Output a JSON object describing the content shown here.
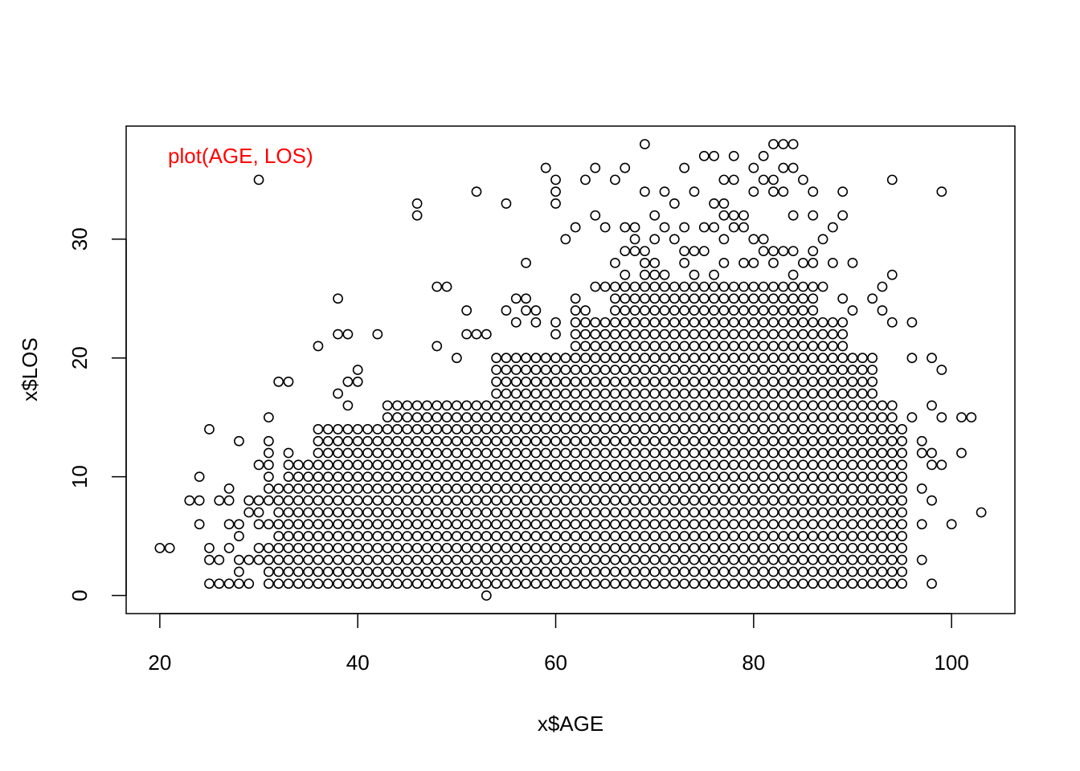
{
  "chart_data": {
    "type": "scatter",
    "title": "",
    "annotation": "plot(AGE, LOS)",
    "annotation_color": "#ff0000",
    "xlabel": "x$AGE",
    "ylabel": "x$LOS",
    "xlim": [
      16.6,
      106.4
    ],
    "ylim": [
      -1.52,
      39.52
    ],
    "x_ticks": [
      20,
      40,
      60,
      80,
      100
    ],
    "y_ticks": [
      0,
      10,
      20,
      30
    ],
    "x_tick_labels": [
      "20",
      "40",
      "60",
      "80",
      "100"
    ],
    "y_tick_labels": [
      "0",
      "10",
      "20",
      "30"
    ],
    "grid": false,
    "legend": "none",
    "point_style": "open-circle",
    "point_color": "#000000",
    "series": [
      {
        "points": [
          [
            20,
            4
          ],
          [
            21,
            4
          ],
          [
            23,
            8
          ],
          [
            24,
            6
          ],
          [
            24,
            8
          ],
          [
            24,
            10
          ],
          [
            25,
            1
          ],
          [
            25,
            3
          ],
          [
            25,
            4
          ],
          [
            25,
            14
          ],
          [
            26,
            1
          ],
          [
            26,
            3
          ],
          [
            26,
            8
          ],
          [
            27,
            1
          ],
          [
            27,
            4
          ],
          [
            27,
            6
          ],
          [
            27,
            8
          ],
          [
            27,
            9
          ],
          [
            28,
            1
          ],
          [
            28,
            2
          ],
          [
            28,
            3
          ],
          [
            28,
            5
          ],
          [
            28,
            6
          ],
          [
            28,
            13
          ],
          [
            29,
            1
          ],
          [
            29,
            3
          ],
          [
            29,
            7
          ],
          [
            29,
            8
          ],
          [
            30,
            3
          ],
          [
            30,
            4
          ],
          [
            30,
            6
          ],
          [
            30,
            7
          ],
          [
            30,
            8
          ],
          [
            30,
            11
          ],
          [
            30,
            35
          ],
          [
            31,
            1
          ],
          [
            31,
            2
          ],
          [
            31,
            3
          ],
          [
            31,
            4
          ],
          [
            31,
            6
          ],
          [
            31,
            8
          ],
          [
            31,
            9
          ],
          [
            31,
            10
          ],
          [
            31,
            11
          ],
          [
            31,
            12
          ],
          [
            31,
            13
          ],
          [
            31,
            15
          ],
          [
            32,
            18
          ],
          [
            32,
            1
          ],
          [
            32,
            2
          ],
          [
            32,
            3
          ],
          [
            32,
            4
          ],
          [
            32,
            5
          ],
          [
            32,
            6
          ],
          [
            32,
            7
          ],
          [
            32,
            8
          ],
          [
            32,
            9
          ],
          [
            33,
            18
          ],
          [
            33,
            12
          ],
          [
            33,
            10
          ],
          [
            33,
            8
          ],
          [
            33,
            6
          ],
          [
            36,
            14
          ],
          [
            36,
            21
          ],
          [
            38,
            17
          ],
          [
            38,
            25
          ],
          [
            38,
            22
          ],
          [
            39,
            22
          ],
          [
            39,
            18
          ],
          [
            39,
            16
          ],
          [
            40,
            19
          ],
          [
            40,
            18
          ],
          [
            42,
            22
          ],
          [
            46,
            32
          ],
          [
            46,
            33
          ],
          [
            48,
            26
          ],
          [
            49,
            26
          ],
          [
            48,
            21
          ],
          [
            50,
            20
          ],
          [
            51,
            24
          ],
          [
            51,
            22
          ],
          [
            52,
            34
          ],
          [
            52,
            22
          ],
          [
            53,
            22
          ],
          [
            55,
            33
          ],
          [
            55,
            24
          ],
          [
            56,
            25
          ],
          [
            56,
            23
          ],
          [
            57,
            25
          ],
          [
            57,
            28
          ],
          [
            57,
            24
          ],
          [
            58,
            24
          ],
          [
            58,
            23
          ],
          [
            59,
            36
          ],
          [
            60,
            35
          ],
          [
            60,
            34
          ],
          [
            60,
            33
          ],
          [
            60,
            23
          ],
          [
            60,
            22
          ],
          [
            61,
            30
          ],
          [
            62,
            31
          ],
          [
            62,
            25
          ],
          [
            62,
            24
          ],
          [
            63,
            35
          ],
          [
            63,
            24
          ],
          [
            64,
            36
          ],
          [
            64,
            32
          ],
          [
            64,
            26
          ],
          [
            65,
            31
          ],
          [
            65,
            26
          ],
          [
            66,
            35
          ],
          [
            66,
            28
          ],
          [
            67,
            36
          ],
          [
            67,
            31
          ],
          [
            67,
            29
          ],
          [
            67,
            27
          ],
          [
            68,
            31
          ],
          [
            68,
            30
          ],
          [
            68,
            29
          ],
          [
            69,
            38
          ],
          [
            69,
            34
          ],
          [
            69,
            29
          ],
          [
            69,
            28
          ],
          [
            69,
            27
          ],
          [
            70,
            32
          ],
          [
            70,
            30
          ],
          [
            70,
            28
          ],
          [
            70,
            27
          ],
          [
            71,
            34
          ],
          [
            71,
            31
          ],
          [
            71,
            27
          ],
          [
            72,
            33
          ],
          [
            72,
            30
          ],
          [
            73,
            36
          ],
          [
            73,
            31
          ],
          [
            73,
            29
          ],
          [
            73,
            28
          ],
          [
            74,
            34
          ],
          [
            74,
            29
          ],
          [
            74,
            27
          ],
          [
            75,
            37
          ],
          [
            75,
            31
          ],
          [
            75,
            29
          ],
          [
            76,
            37
          ],
          [
            76,
            33
          ],
          [
            76,
            31
          ],
          [
            76,
            27
          ],
          [
            77,
            35
          ],
          [
            77,
            33
          ],
          [
            77,
            32
          ],
          [
            77,
            30
          ],
          [
            77,
            28
          ],
          [
            78,
            37
          ],
          [
            78,
            35
          ],
          [
            78,
            32
          ],
          [
            78,
            31
          ],
          [
            79,
            32
          ],
          [
            79,
            31
          ],
          [
            79,
            28
          ],
          [
            80,
            36
          ],
          [
            80,
            34
          ],
          [
            80,
            30
          ],
          [
            80,
            28
          ],
          [
            81,
            37
          ],
          [
            81,
            35
          ],
          [
            81,
            30
          ],
          [
            81,
            29
          ],
          [
            82,
            38
          ],
          [
            82,
            35
          ],
          [
            82,
            34
          ],
          [
            82,
            29
          ],
          [
            82,
            28
          ],
          [
            83,
            38
          ],
          [
            83,
            36
          ],
          [
            83,
            34
          ],
          [
            83,
            29
          ],
          [
            84,
            38
          ],
          [
            84,
            36
          ],
          [
            84,
            32
          ],
          [
            84,
            29
          ],
          [
            84,
            27
          ],
          [
            85,
            35
          ],
          [
            85,
            28
          ],
          [
            86,
            34
          ],
          [
            86,
            32
          ],
          [
            86,
            29
          ],
          [
            86,
            28
          ],
          [
            87,
            30
          ],
          [
            87,
            26
          ],
          [
            88,
            31
          ],
          [
            88,
            28
          ],
          [
            89,
            34
          ],
          [
            89,
            32
          ],
          [
            89,
            25
          ],
          [
            90,
            28
          ],
          [
            90,
            24
          ],
          [
            92,
            25
          ],
          [
            93,
            26
          ],
          [
            93,
            24
          ],
          [
            94,
            35
          ],
          [
            94,
            27
          ],
          [
            94,
            23
          ],
          [
            96,
            23
          ],
          [
            96,
            20
          ],
          [
            96,
            15
          ],
          [
            97,
            13
          ],
          [
            97,
            12
          ],
          [
            97,
            9
          ],
          [
            97,
            6
          ],
          [
            97,
            3
          ],
          [
            98,
            20
          ],
          [
            98,
            16
          ],
          [
            98,
            12
          ],
          [
            98,
            11
          ],
          [
            98,
            8
          ],
          [
            98,
            1
          ],
          [
            99,
            34
          ],
          [
            99,
            19
          ],
          [
            99,
            15
          ],
          [
            99,
            11
          ],
          [
            100,
            6
          ],
          [
            101,
            15
          ],
          [
            101,
            12
          ],
          [
            102,
            15
          ],
          [
            103,
            7
          ],
          [
            53,
            0
          ]
        ],
        "dense_regions": [
          {
            "x_range": [
              33,
              95
            ],
            "y_range": [
              1,
              11
            ]
          },
          {
            "x_range": [
              36,
              95
            ],
            "y_range": [
              11,
              14
            ]
          },
          {
            "x_range": [
              43,
              94
            ],
            "y_range": [
              14,
              16
            ]
          },
          {
            "x_range": [
              54,
              92
            ],
            "y_range": [
              16,
              20
            ]
          },
          {
            "x_range": [
              62,
              89
            ],
            "y_range": [
              20,
              23
            ]
          },
          {
            "x_range": [
              66,
              86
            ],
            "y_range": [
              23,
              26
            ]
          }
        ]
      }
    ]
  }
}
